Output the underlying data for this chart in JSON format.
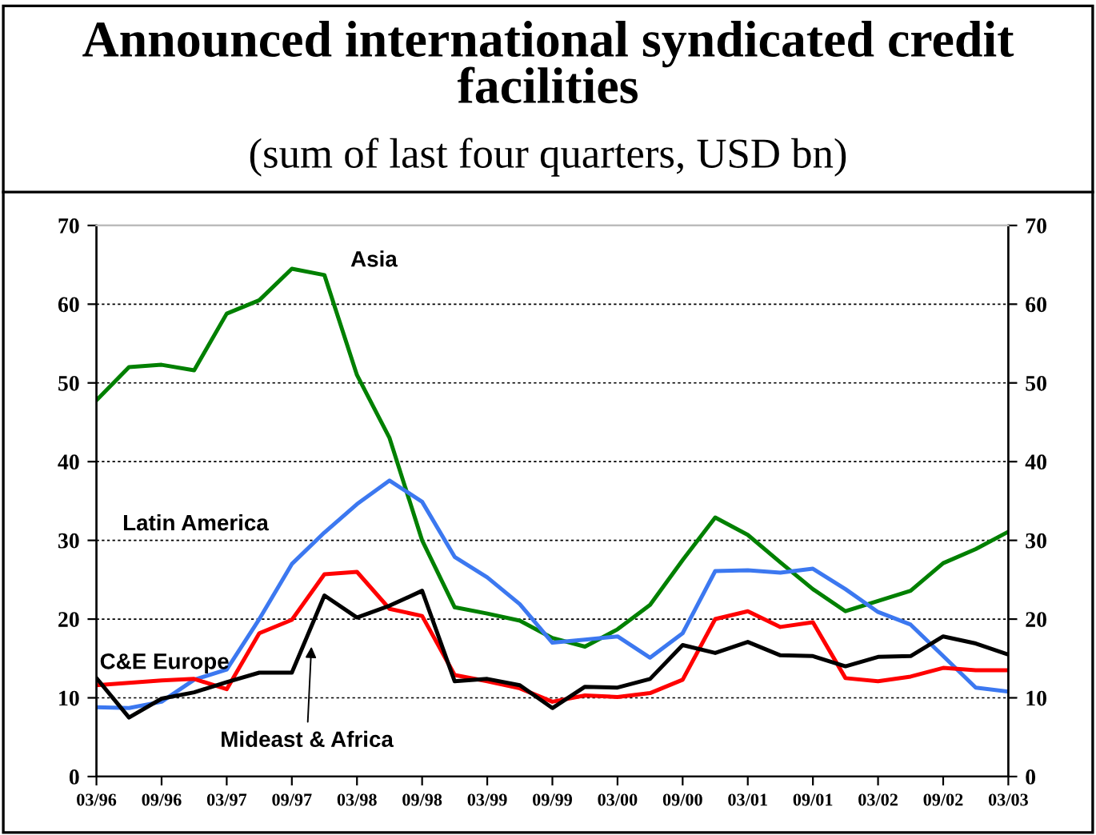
{
  "chart_data": {
    "type": "line",
    "title": "Announced international syndicated credit facilities",
    "subtitle": "(sum of last four quarters, USD bn)",
    "categories": [
      "03/96",
      null,
      "09/96",
      null,
      "03/97",
      null,
      "09/97",
      null,
      "03/98",
      null,
      "09/98",
      null,
      "03/99",
      null,
      "09/99",
      null,
      "03/00",
      null,
      "09/00",
      null,
      "03/01",
      null,
      "09/01",
      null,
      "03/02",
      null,
      "09/02",
      null,
      "03/03"
    ],
    "series": [
      {
        "name": "Asia",
        "color": "#008000",
        "values": [
          47.8,
          52,
          52.3,
          51.6,
          58.8,
          60.5,
          64.5,
          63.7,
          51,
          43,
          30,
          21.5,
          20.7,
          19.8,
          17.6,
          16.5,
          18.7,
          21.8,
          27.5,
          32.9,
          30.7,
          27.2,
          23.8,
          21,
          22.3,
          23.6,
          27.1,
          28.9,
          31.1
        ]
      },
      {
        "name": "Latin America",
        "color": "#3c78f0",
        "values": [
          8.8,
          8.7,
          9.5,
          12.3,
          13.6,
          20,
          27,
          31,
          34.6,
          37.6,
          34.9,
          27.9,
          25.3,
          21.9,
          17,
          17.4,
          17.8,
          15.1,
          18.2,
          26.1,
          26.2,
          25.9,
          26.4,
          23.8,
          20.9,
          19.3,
          15.3,
          11.3,
          10.8
        ]
      },
      {
        "name": "C&E Europe",
        "color": "#ff0000",
        "values": [
          11.6,
          11.9,
          12.2,
          12.4,
          11.1,
          18.2,
          19.9,
          25.7,
          26,
          21.3,
          20.4,
          12.9,
          12.1,
          11.2,
          9.5,
          10.3,
          10.1,
          10.6,
          12.3,
          20,
          21,
          19,
          19.6,
          12.5,
          12.1,
          12.7,
          13.8,
          13.5,
          13.5
        ]
      },
      {
        "name": "Mideast & Africa",
        "color": "#000000",
        "values": [
          12.5,
          7.5,
          9.9,
          10.7,
          12,
          13.2,
          13.2,
          23,
          20.2,
          21.7,
          23.6,
          12.1,
          12.4,
          11.6,
          8.7,
          11.4,
          11.3,
          12.4,
          16.7,
          15.7,
          17.1,
          15.4,
          15.3,
          14,
          15.2,
          15.3,
          17.8,
          16.9,
          15.5
        ]
      }
    ],
    "ylim": [
      0,
      70
    ],
    "yticks": [
      0,
      10,
      20,
      30,
      40,
      50,
      60,
      70
    ],
    "y2lim": [
      0,
      70
    ],
    "y2ticks": [
      0,
      10,
      20,
      30,
      40,
      50,
      60,
      70
    ],
    "grid": "y",
    "legend": false,
    "marker": "none",
    "line_style": "solid"
  }
}
